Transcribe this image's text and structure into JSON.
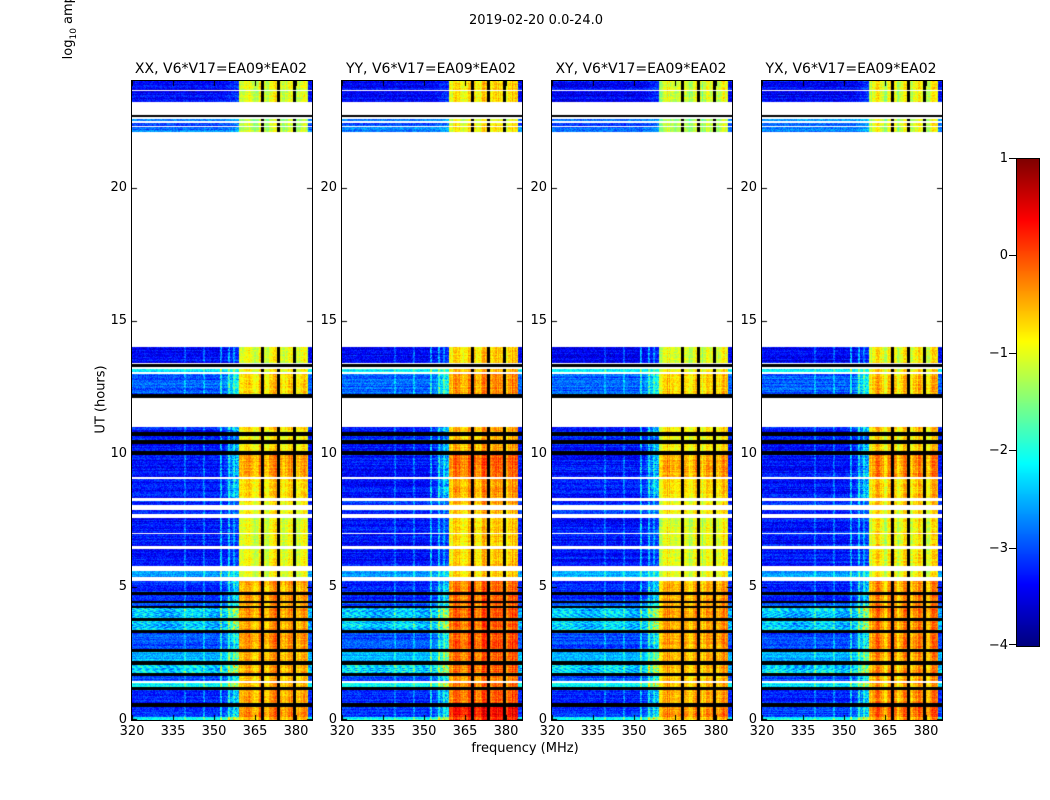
{
  "figure": {
    "title": "2019-02-20 0.0-24.0",
    "background_color": "#ffffff"
  },
  "chart_data": {
    "type": "heatmap",
    "title": "2019-02-20 0.0-24.0",
    "xlabel": "frequency (MHz)",
    "ylabel": "UT (hours)",
    "x_range": [
      320,
      386
    ],
    "y_range": [
      0,
      24
    ],
    "x_ticks": [
      320,
      335,
      350,
      365,
      380
    ],
    "y_ticks": [
      0,
      5,
      10,
      15,
      20
    ],
    "grid": false,
    "colormap": "jet",
    "colorbar": {
      "label_prefix": "log",
      "label_sub": "10",
      "label_suffix": " amplitude",
      "range": [
        -4,
        1
      ],
      "ticks": [
        1,
        0,
        -1,
        -2,
        -3,
        -4
      ],
      "top_color": "#800000",
      "bottom_color": "#000080"
    },
    "panels": [
      {
        "name": "xx",
        "title": "XX, V6*V17=EA09*EA02",
        "seed": 101,
        "emission_boost": 0.0
      },
      {
        "name": "yy",
        "title": "YY, V6*V17=EA09*EA02",
        "seed": 202,
        "emission_boost": 0.3
      },
      {
        "name": "xy",
        "title": "XY, V6*V17=EA09*EA02",
        "seed": 303,
        "emission_boost": -0.05
      },
      {
        "name": "yx",
        "title": "YX, V6*V17=EA09*EA02",
        "seed": 404,
        "emission_boost": 0.05
      }
    ],
    "emission_band": {
      "f_start": 359.2,
      "f_end": 384.6,
      "separators": [
        [
          367.2,
          368.3
        ],
        [
          373.2,
          374.3
        ],
        [
          379.2,
          380.3
        ]
      ]
    },
    "faint_lines": [
      {
        "f": 339.5,
        "amp": 0.45
      },
      {
        "f": 346.5,
        "amp": 0.5
      },
      {
        "f": 352.5,
        "amp": 0.9
      },
      {
        "f": 355.5,
        "amp": 0.8
      },
      {
        "f": 357.3,
        "amp": 0.55
      }
    ],
    "segments": [
      {
        "ut": [
          23.68,
          24.0
        ],
        "kind": "data",
        "base": -3.4,
        "emis": -1.05
      },
      {
        "ut": [
          23.62,
          23.68
        ],
        "kind": "white"
      },
      {
        "ut": [
          23.2,
          23.62
        ],
        "kind": "data",
        "base": -3.4,
        "emis": -1.1
      },
      {
        "ut": [
          22.72,
          23.2
        ],
        "kind": "white"
      },
      {
        "ut": [
          22.64,
          22.72
        ],
        "kind": "black"
      },
      {
        "ut": [
          22.58,
          22.64
        ],
        "kind": "white"
      },
      {
        "ut": [
          22.5,
          22.58
        ],
        "kind": "data",
        "base": -2.7,
        "emis": -1.3
      },
      {
        "ut": [
          22.42,
          22.5
        ],
        "kind": "white"
      },
      {
        "ut": [
          22.32,
          22.42
        ],
        "kind": "data",
        "base": -3.0,
        "emis": -1.15
      },
      {
        "ut": [
          22.26,
          22.32
        ],
        "kind": "white"
      },
      {
        "ut": [
          22.1,
          22.26
        ],
        "kind": "data",
        "base": -2.8,
        "emis": -1.2
      },
      {
        "ut": [
          14.02,
          22.1
        ],
        "kind": "white"
      },
      {
        "ut": [
          13.42,
          14.02
        ],
        "kind": "data",
        "base": -3.4,
        "emis": -1.0
      },
      {
        "ut": [
          13.38,
          13.42
        ],
        "kind": "white"
      },
      {
        "ut": [
          13.27,
          13.38
        ],
        "kind": "black"
      },
      {
        "ut": [
          13.19,
          13.27
        ],
        "kind": "white"
      },
      {
        "ut": [
          13.08,
          13.19
        ],
        "kind": "data",
        "base": -2.2,
        "emis": -0.9
      },
      {
        "ut": [
          12.98,
          13.08
        ],
        "kind": "white"
      },
      {
        "ut": [
          12.26,
          12.98
        ],
        "kind": "data",
        "base": -2.9,
        "emis": -0.7
      },
      {
        "ut": [
          12.08,
          12.26
        ],
        "kind": "black"
      },
      {
        "ut": [
          11.02,
          12.08
        ],
        "kind": "white"
      },
      {
        "ut": [
          10.82,
          11.02
        ],
        "kind": "data",
        "base": -3.3,
        "emis": -0.8
      },
      {
        "ut": [
          10.67,
          10.82
        ],
        "kind": "black"
      },
      {
        "ut": [
          10.52,
          10.67
        ],
        "kind": "data",
        "base": -3.2,
        "emis": -0.9
      },
      {
        "ut": [
          10.38,
          10.52
        ],
        "kind": "black"
      },
      {
        "ut": [
          10.1,
          10.38
        ],
        "kind": "data",
        "base": -3.3,
        "emis": -0.8
      },
      {
        "ut": [
          9.96,
          10.1
        ],
        "kind": "black"
      },
      {
        "ut": [
          9.12,
          9.96
        ],
        "kind": "data",
        "base": -3.3,
        "emis": -0.45
      },
      {
        "ut": [
          9.04,
          9.12
        ],
        "kind": "white"
      },
      {
        "ut": [
          8.33,
          9.04
        ],
        "kind": "data",
        "base": -3.3,
        "emis": -0.75
      },
      {
        "ut": [
          8.24,
          8.33
        ],
        "kind": "white"
      },
      {
        "ut": [
          8.06,
          8.24
        ],
        "kind": "data",
        "base": -3.2,
        "emis": -0.85
      },
      {
        "ut": [
          7.9,
          8.06
        ],
        "kind": "white"
      },
      {
        "ut": [
          7.72,
          7.9
        ],
        "kind": "data",
        "base": -3.2,
        "emis": -0.9
      },
      {
        "ut": [
          7.58,
          7.72
        ],
        "kind": "white"
      },
      {
        "ut": [
          7.04,
          7.58
        ],
        "kind": "data",
        "base": -3.3,
        "emis": -1.0
      },
      {
        "ut": [
          6.98,
          7.04
        ],
        "kind": "white"
      },
      {
        "ut": [
          6.55,
          6.98
        ],
        "kind": "data",
        "base": -3.3,
        "emis": -1.0
      },
      {
        "ut": [
          6.44,
          6.55
        ],
        "kind": "white"
      },
      {
        "ut": [
          5.78,
          6.44
        ],
        "kind": "data",
        "base": -3.3,
        "emis": -0.95
      },
      {
        "ut": [
          5.58,
          5.78
        ],
        "kind": "white"
      },
      {
        "ut": [
          5.38,
          5.58
        ],
        "kind": "data",
        "base": -2.6,
        "emis": -1.0
      },
      {
        "ut": [
          5.22,
          5.38
        ],
        "kind": "white"
      },
      {
        "ut": [
          4.82,
          5.22
        ],
        "kind": "data",
        "base": -3.2,
        "emis": -0.5
      },
      {
        "ut": [
          4.68,
          4.82
        ],
        "kind": "black"
      },
      {
        "ut": [
          4.48,
          4.68
        ],
        "kind": "data",
        "base": -3.2,
        "emis": -0.45
      },
      {
        "ut": [
          4.38,
          4.48
        ],
        "kind": "black"
      },
      {
        "ut": [
          4.3,
          4.38
        ],
        "kind": "data",
        "base": -3.0,
        "emis": -0.5
      },
      {
        "ut": [
          4.22,
          4.3
        ],
        "kind": "black"
      },
      {
        "ut": [
          3.82,
          4.22
        ],
        "kind": "data",
        "base": -2.4,
        "emis": -0.4,
        "tex": "dot"
      },
      {
        "ut": [
          3.72,
          3.82
        ],
        "kind": "black"
      },
      {
        "ut": [
          3.38,
          3.72
        ],
        "kind": "data",
        "base": -2.4,
        "emis": -0.45,
        "tex": "dot"
      },
      {
        "ut": [
          3.28,
          3.38
        ],
        "kind": "black"
      },
      {
        "ut": [
          2.68,
          3.28
        ],
        "kind": "data",
        "base": -3.0,
        "emis": -0.4
      },
      {
        "ut": [
          2.56,
          2.68
        ],
        "kind": "black"
      },
      {
        "ut": [
          2.2,
          2.56
        ],
        "kind": "data",
        "base": -2.5,
        "emis": -0.5
      },
      {
        "ut": [
          2.08,
          2.2
        ],
        "kind": "black"
      },
      {
        "ut": [
          1.78,
          2.08
        ],
        "kind": "data",
        "base": -2.3,
        "emis": -0.5,
        "tex": "dot"
      },
      {
        "ut": [
          1.66,
          1.78
        ],
        "kind": "black"
      },
      {
        "ut": [
          1.46,
          1.66
        ],
        "kind": "data",
        "base": -3.0,
        "emis": -0.6
      },
      {
        "ut": [
          1.4,
          1.46
        ],
        "kind": "white"
      },
      {
        "ut": [
          1.24,
          1.4
        ],
        "kind": "data",
        "base": -2.2,
        "emis": -0.6
      },
      {
        "ut": [
          1.12,
          1.24
        ],
        "kind": "black"
      },
      {
        "ut": [
          0.62,
          1.12
        ],
        "kind": "data",
        "base": -3.2,
        "emis": -0.45
      },
      {
        "ut": [
          0.5,
          0.62
        ],
        "kind": "black"
      },
      {
        "ut": [
          0.12,
          0.5
        ],
        "kind": "data",
        "base": -3.1,
        "emis": -0.3
      },
      {
        "ut": [
          0.0,
          0.12
        ],
        "kind": "data",
        "base": -2.0,
        "emis": -0.5
      }
    ]
  }
}
